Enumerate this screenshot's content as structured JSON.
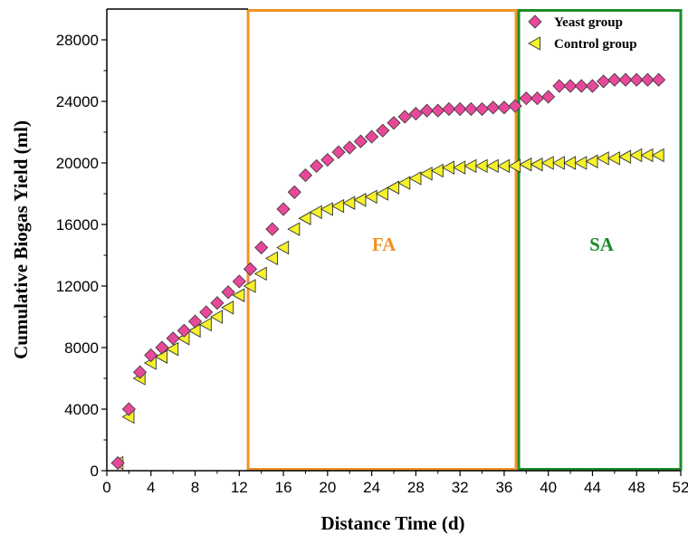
{
  "chart_data": {
    "type": "scatter",
    "xlabel": "Distance Time (d)",
    "ylabel": "Cumulative Biogas Yield (ml)",
    "xlim": [
      0,
      52
    ],
    "ylim": [
      0,
      30000
    ],
    "xticks": [
      0,
      4,
      8,
      12,
      16,
      20,
      24,
      28,
      32,
      36,
      40,
      44,
      48,
      52
    ],
    "yticks": [
      0,
      4000,
      8000,
      12000,
      16000,
      20000,
      24000,
      28000
    ],
    "legend_position": "top-right",
    "series": [
      {
        "name": "Yeast group",
        "marker": "diamond",
        "color": "#e8489a",
        "x": [
          1,
          2,
          3,
          4,
          5,
          6,
          7,
          8,
          9,
          10,
          11,
          12,
          13,
          14,
          15,
          16,
          17,
          18,
          19,
          20,
          21,
          22,
          23,
          24,
          25,
          26,
          27,
          28,
          29,
          30,
          31,
          32,
          33,
          34,
          35,
          36,
          37,
          38,
          39,
          40,
          41,
          42,
          43,
          44,
          45,
          46,
          47,
          48,
          49,
          50
        ],
        "y": [
          500,
          4000,
          6400,
          7500,
          8000,
          8600,
          9100,
          9700,
          10300,
          10900,
          11600,
          12300,
          13100,
          14500,
          15700,
          17000,
          18100,
          19200,
          19800,
          20200,
          20700,
          21000,
          21400,
          21700,
          22100,
          22600,
          23000,
          23200,
          23400,
          23400,
          23500,
          23500,
          23500,
          23500,
          23600,
          23600,
          23700,
          24200,
          24200,
          24300,
          25000,
          25000,
          25000,
          25000,
          25300,
          25400,
          25400,
          25400,
          25400,
          25400
        ]
      },
      {
        "name": "Control group",
        "marker": "left-triangle",
        "color": "#f5f22a",
        "x": [
          1,
          2,
          3,
          4,
          5,
          6,
          7,
          8,
          9,
          10,
          11,
          12,
          13,
          14,
          15,
          16,
          17,
          18,
          19,
          20,
          21,
          22,
          23,
          24,
          25,
          26,
          27,
          28,
          29,
          30,
          31,
          32,
          33,
          34,
          35,
          36,
          37,
          38,
          39,
          40,
          41,
          42,
          43,
          44,
          45,
          46,
          47,
          48,
          49,
          50
        ],
        "y": [
          500,
          3500,
          6000,
          7000,
          7400,
          7900,
          8600,
          9100,
          9500,
          10000,
          10600,
          11400,
          12000,
          12800,
          13800,
          14500,
          15700,
          16400,
          16800,
          17000,
          17200,
          17400,
          17600,
          17800,
          18000,
          18400,
          18700,
          19000,
          19300,
          19500,
          19700,
          19700,
          19800,
          19800,
          19800,
          19800,
          19800,
          19900,
          19900,
          20000,
          20000,
          20000,
          20000,
          20100,
          20300,
          20300,
          20400,
          20500,
          20500,
          20500
        ]
      }
    ],
    "regions": [
      {
        "label": "FA",
        "x_start": 12.8,
        "x_end": 37.2,
        "color": "#f39224"
      },
      {
        "label": "SA",
        "x_start": 37.2,
        "x_end": 52,
        "color": "#1b8c2a"
      }
    ]
  }
}
